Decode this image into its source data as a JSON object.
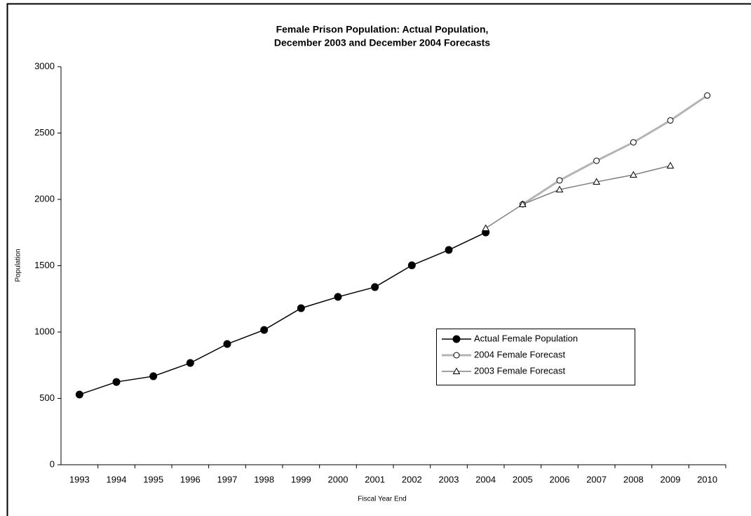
{
  "chart_data": {
    "type": "line",
    "title": [
      "Female Prison Population: Actual Population,",
      "December 2003 and December 2004 Forecasts"
    ],
    "x_label": "Fiscal Year End",
    "y_label": "Population",
    "categories": [
      "1993",
      "1994",
      "1995",
      "1996",
      "1997",
      "1998",
      "1999",
      "2000",
      "2001",
      "2002",
      "2003",
      "2004",
      "2005",
      "2006",
      "2007",
      "2008",
      "2009",
      "2010"
    ],
    "series": [
      {
        "name": "Actual Female Population",
        "color": "#000000",
        "marker": "filled-circle",
        "line_width": 1.5,
        "values": [
          529,
          624,
          667,
          767,
          910,
          1016,
          1180,
          1265,
          1339,
          1503,
          1619,
          1751,
          null,
          null,
          null,
          null,
          null,
          null
        ]
      },
      {
        "name": "2004 Female Forecast",
        "color": "#b4b4b4",
        "marker": "open-circle",
        "line_width": 3,
        "values": [
          null,
          null,
          null,
          null,
          null,
          null,
          null,
          null,
          null,
          null,
          null,
          null,
          1963,
          2143,
          2291,
          2430,
          2595,
          2783
        ]
      },
      {
        "name": "2003 Female Forecast",
        "color": "#808080",
        "marker": "triangle",
        "line_width": 1.5,
        "values": [
          null,
          null,
          null,
          null,
          null,
          null,
          null,
          null,
          null,
          null,
          null,
          1783,
          1963,
          2074,
          2132,
          2185,
          2254,
          null
        ]
      }
    ],
    "ylim": [
      0,
      3000
    ],
    "yticks": [
      0,
      500,
      1000,
      1500,
      2000,
      2500,
      3000
    ],
    "grid": false
  }
}
